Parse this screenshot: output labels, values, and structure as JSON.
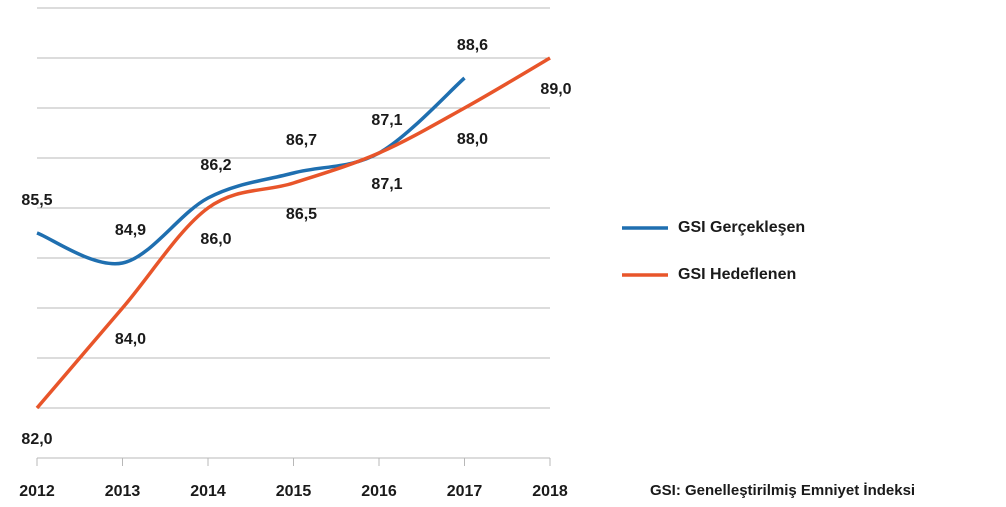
{
  "chart_data": {
    "type": "line",
    "categories": [
      "2012",
      "2013",
      "2014",
      "2015",
      "2016",
      "2017",
      "2018"
    ],
    "series": [
      {
        "name": "GSI Gerçekleşen",
        "color": "#1f6fb0",
        "values": [
          85.5,
          84.9,
          86.2,
          86.7,
          87.1,
          88.6,
          null
        ],
        "value_labels": [
          "85,5",
          "84,9",
          "86,2",
          "86,7",
          "87,1",
          "88,6",
          null
        ]
      },
      {
        "name": "GSI Hedeflenen",
        "color": "#e8552a",
        "values": [
          82.0,
          84.0,
          86.0,
          86.5,
          87.1,
          88.0,
          89.0
        ],
        "value_labels": [
          "82,0",
          "84,0",
          "86,0",
          "86,5",
          "87,1",
          "88,0",
          "89,0"
        ]
      }
    ],
    "ylim": [
      81,
      90
    ],
    "yticks": [
      82,
      83,
      84,
      85,
      86,
      87,
      88,
      89,
      90
    ],
    "grid": true,
    "note": "GSI: Genelleştirilmiş Emniyet İndeksi"
  }
}
